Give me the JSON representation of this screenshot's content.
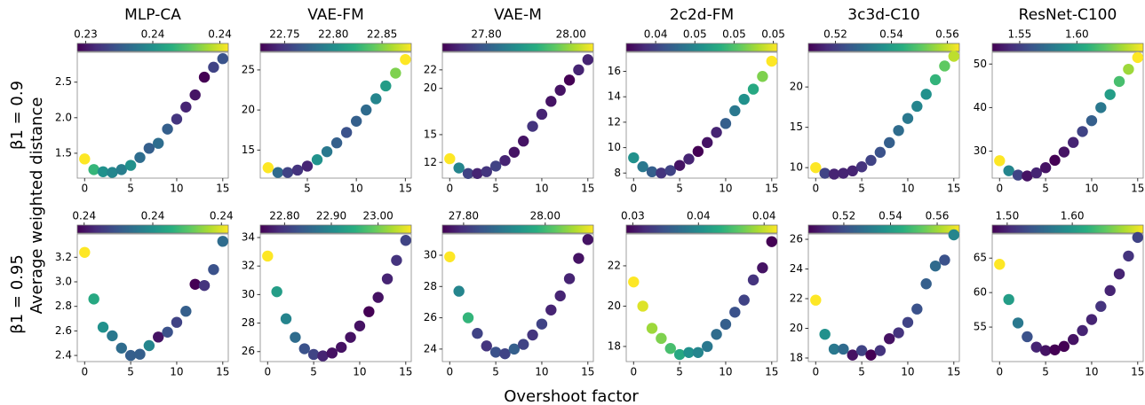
{
  "figure": {
    "row_labels": [
      "β1 = 0.9",
      "β1 = 0.95"
    ],
    "ylabel": "Average weighted distance",
    "xlabel": "Overshoot factor"
  },
  "chart_data": [
    {
      "type": "scatter",
      "title": "MLP-CA",
      "colormap": "viridis",
      "x": [
        0,
        1,
        2,
        3,
        4,
        5,
        6,
        7,
        8,
        9,
        10,
        11,
        12,
        13,
        14,
        15
      ],
      "values": [
        1.42,
        1.27,
        1.24,
        1.23,
        1.27,
        1.33,
        1.44,
        1.57,
        1.64,
        1.84,
        1.98,
        2.15,
        2.32,
        2.57,
        2.71,
        2.83
      ],
      "color_values": [
        0.2425,
        0.2394,
        0.238,
        0.2376,
        0.2373,
        0.238,
        0.2367,
        0.2362,
        0.2367,
        0.2362,
        0.2349,
        0.2344,
        0.234,
        0.2335,
        0.2353,
        0.2358
      ],
      "xlim": [
        -0.8,
        15.6
      ],
      "xticks": [
        0,
        5,
        10,
        15
      ],
      "ylim": [
        1.15,
        2.92
      ],
      "yticks": [
        1.5,
        {
          "value": 2,
          "label": "2.0"
        },
        2.5
      ],
      "clim": [
        0.2335,
        0.2425
      ],
      "cticks": [
        {
          "value": 0.234,
          "label": "0.23"
        },
        {
          "value": 0.238,
          "label": "0.24"
        },
        {
          "value": 0.242,
          "label": "0.24"
        }
      ]
    },
    {
      "type": "scatter",
      "title": "VAE-FM",
      "colormap": "viridis",
      "x": [
        1,
        2,
        3,
        4,
        5,
        6,
        7,
        8,
        9,
        10,
        11,
        12,
        13,
        14,
        15
      ],
      "values": [
        12.8,
        12.2,
        12.2,
        12.5,
        13.0,
        13.8,
        14.8,
        15.9,
        17.2,
        18.6,
        20.0,
        21.4,
        23.0,
        24.6,
        26.3
      ],
      "color_values": [
        22.88,
        22.779,
        22.756,
        22.748,
        22.741,
        22.803,
        22.787,
        22.772,
        22.764,
        22.772,
        22.779,
        22.795,
        22.81,
        22.849,
        22.88
      ],
      "xlim": [
        0.2,
        15.6
      ],
      "xticks": [
        5,
        10,
        15
      ],
      "ylim": [
        11.5,
        27.2
      ],
      "yticks": [
        15,
        20,
        25
      ],
      "clim": [
        22.725,
        22.88
      ],
      "cticks": [
        22.75,
        {
          "value": 22.8,
          "label": "22.80"
        },
        22.85
      ]
    },
    {
      "type": "scatter",
      "title": "VAE-M",
      "colormap": "viridis",
      "x": [
        0,
        1,
        2,
        3,
        4,
        5,
        6,
        7,
        8,
        9,
        10,
        11,
        12,
        13,
        14,
        15
      ],
      "values": [
        12.4,
        11.4,
        10.8,
        10.8,
        11.0,
        11.6,
        12.2,
        13.1,
        14.3,
        15.9,
        17.2,
        18.6,
        19.8,
        20.9,
        22.0,
        23.1
      ],
      "color_values": [
        28.053,
        27.857,
        27.767,
        27.732,
        27.75,
        27.767,
        27.732,
        27.714,
        27.714,
        27.75,
        27.732,
        27.714,
        27.714,
        27.696,
        27.732,
        27.732
      ],
      "xlim": [
        -0.8,
        15.6
      ],
      "xticks": [
        0,
        5,
        10,
        15
      ],
      "ylim": [
        10.3,
        23.9
      ],
      "yticks": [
        12,
        15,
        20,
        22
      ],
      "clim": [
        27.696,
        28.053
      ],
      "cticks": [
        {
          "value": 27.8,
          "label": "27.80"
        },
        {
          "value": 28,
          "label": "28.00"
        }
      ]
    },
    {
      "type": "scatter",
      "title": "2c2d-FM",
      "colormap": "viridis",
      "x": [
        0,
        1,
        2,
        3,
        4,
        5,
        6,
        7,
        8,
        9,
        10,
        11,
        12,
        13,
        14,
        15
      ],
      "values": [
        9.2,
        8.5,
        8.1,
        8.0,
        8.2,
        8.6,
        9.1,
        9.7,
        10.4,
        11.2,
        11.9,
        12.9,
        13.8,
        14.6,
        15.6,
        16.8
      ],
      "color_values": [
        0.04635,
        0.04558,
        0.04481,
        0.04366,
        0.04404,
        0.04289,
        0.04327,
        0.0425,
        0.04289,
        0.04327,
        0.04481,
        0.04558,
        0.04635,
        0.04712,
        0.04866,
        0.0502
      ],
      "xlim": [
        -0.8,
        15.6
      ],
      "xticks": [
        0,
        5,
        10,
        15
      ],
      "ylim": [
        7.6,
        17.5
      ],
      "yticks": [
        8,
        10,
        12,
        14,
        16
      ],
      "clim": [
        0.0425,
        0.0502
      ],
      "cticks": [
        {
          "value": 0.044,
          "label": "0.04"
        },
        {
          "value": 0.046,
          "label": "0.05"
        },
        {
          "value": 0.048,
          "label": "0.05"
        },
        {
          "value": 0.05,
          "label": "0.05"
        }
      ]
    },
    {
      "type": "scatter",
      "title": "3c3d-C10",
      "colormap": "viridis",
      "x": [
        0,
        1,
        2,
        3,
        4,
        5,
        6,
        7,
        8,
        9,
        10,
        11,
        12,
        13,
        14,
        15
      ],
      "values": [
        10.0,
        9.3,
        9.2,
        9.3,
        9.6,
        10.1,
        10.9,
        11.9,
        13.1,
        14.6,
        16.1,
        17.6,
        19.1,
        20.9,
        22.6,
        23.8
      ],
      "color_values": [
        0.5643,
        0.5211,
        0.5157,
        0.5157,
        0.5157,
        0.5184,
        0.5211,
        0.5238,
        0.5265,
        0.5292,
        0.5319,
        0.5346,
        0.5373,
        0.5454,
        0.5508,
        0.5589
      ],
      "xlim": [
        -0.8,
        15.6
      ],
      "xticks": [
        0,
        5,
        10,
        15
      ],
      "ylim": [
        8.7,
        24.3
      ],
      "yticks": [
        10,
        15,
        20
      ],
      "clim": [
        0.5103,
        0.5643
      ],
      "cticks": [
        0.52,
        0.54,
        0.56
      ]
    },
    {
      "type": "scatter",
      "title": "ResNet-C100",
      "colormap": "viridis",
      "x": [
        0,
        1,
        2,
        3,
        4,
        5,
        6,
        7,
        8,
        9,
        10,
        11,
        12,
        13,
        14,
        15
      ],
      "values": [
        27.8,
        25.5,
        24.5,
        24.3,
        25.0,
        26.2,
        27.9,
        29.8,
        32.0,
        34.5,
        37.0,
        40.0,
        43.0,
        46.0,
        48.8,
        51.5
      ],
      "color_values": [
        1.658,
        1.5854,
        1.5524,
        1.5326,
        1.5392,
        1.5326,
        1.526,
        1.5326,
        1.5392,
        1.5524,
        1.5656,
        1.5788,
        1.5986,
        1.6184,
        1.6382,
        1.658
      ],
      "xlim": [
        -0.8,
        15.6
      ],
      "xticks": [
        0,
        5,
        10,
        15
      ],
      "ylim": [
        23.8,
        52.7
      ],
      "yticks": [
        30,
        40,
        50
      ],
      "clim": [
        1.526,
        1.658
      ],
      "cticks": [
        1.55,
        {
          "value": 1.6,
          "label": "1.60"
        }
      ]
    },
    {
      "type": "scatter",
      "colormap": "viridis",
      "x": [
        0,
        1,
        2,
        3,
        4,
        5,
        6,
        7,
        8,
        9,
        10,
        11,
        12,
        13,
        14,
        15
      ],
      "values": [
        3.24,
        2.86,
        2.63,
        2.56,
        2.46,
        2.4,
        2.41,
        2.48,
        2.55,
        2.59,
        2.67,
        2.76,
        2.98,
        2.97,
        3.1,
        3.33
      ],
      "color_values": [
        0.2397,
        0.23794,
        0.2375,
        0.23706,
        0.23684,
        0.23662,
        0.23662,
        0.23728,
        0.23552,
        0.2364,
        0.23618,
        0.23662,
        0.2353,
        0.23596,
        0.2364,
        0.23684
      ],
      "xlim": [
        -0.8,
        15.6
      ],
      "xticks": [
        0,
        5,
        10,
        15
      ],
      "ylim": [
        2.35,
        3.39
      ],
      "yticks": [
        2.4,
        2.6,
        2.8,
        {
          "value": 3,
          "label": "3.0"
        },
        3.2
      ],
      "clim": [
        0.2353,
        0.2397
      ],
      "cticks": [
        {
          "value": 0.2355,
          "label": "0.24"
        },
        {
          "value": 0.2375,
          "label": "0.24"
        },
        {
          "value": 0.2395,
          "label": "0.24"
        }
      ]
    },
    {
      "type": "scatter",
      "colormap": "viridis",
      "x": [
        0,
        1,
        2,
        3,
        4,
        5,
        6,
        7,
        8,
        9,
        10,
        11,
        12,
        13,
        14,
        15
      ],
      "values": [
        32.7,
        30.2,
        28.3,
        27.0,
        26.2,
        25.8,
        25.7,
        25.9,
        26.3,
        27.0,
        27.8,
        28.8,
        29.8,
        31.1,
        32.4,
        33.8
      ],
      "color_values": [
        23.071,
        22.926,
        22.893,
        22.861,
        22.829,
        22.813,
        22.78,
        22.764,
        22.764,
        22.764,
        22.764,
        22.748,
        22.764,
        22.78,
        22.796,
        22.813
      ],
      "xlim": [
        -0.8,
        15.6
      ],
      "xticks": [
        0,
        5,
        10,
        15
      ],
      "ylim": [
        25.3,
        34.25
      ],
      "yticks": [
        26,
        28,
        30,
        32,
        34
      ],
      "clim": [
        22.748,
        23.071
      ],
      "cticks": [
        {
          "value": 22.8,
          "label": "22.80"
        },
        {
          "value": 22.9,
          "label": "22.90"
        },
        {
          "value": 23,
          "label": "23.00"
        }
      ]
    },
    {
      "type": "scatter",
      "colormap": "viridis",
      "x": [
        0,
        1,
        2,
        3,
        4,
        5,
        6,
        7,
        8,
        9,
        10,
        11,
        12,
        13,
        14,
        15
      ],
      "values": [
        29.9,
        27.7,
        26.0,
        25.0,
        24.2,
        23.8,
        23.7,
        24.0,
        24.3,
        24.9,
        25.6,
        26.5,
        27.4,
        28.5,
        29.8,
        31.0
      ],
      "color_values": [
        28.118,
        27.915,
        27.989,
        27.822,
        27.804,
        27.841,
        27.822,
        27.859,
        27.822,
        27.804,
        27.822,
        27.785,
        27.785,
        27.785,
        27.767,
        27.767
      ],
      "xlim": [
        -0.8,
        15.6
      ],
      "xticks": [
        0,
        5,
        10,
        15
      ],
      "ylim": [
        23.2,
        31.36
      ],
      "yticks": [
        24,
        26,
        28,
        30
      ],
      "clim": [
        27.748,
        28.118
      ],
      "cticks": [
        {
          "value": 27.8,
          "label": "27.80"
        },
        {
          "value": 28,
          "label": "28.00"
        }
      ]
    },
    {
      "type": "scatter",
      "colormap": "viridis",
      "x": [
        0,
        1,
        2,
        3,
        4,
        5,
        6,
        7,
        8,
        9,
        10,
        11,
        12,
        13,
        14,
        15
      ],
      "values": [
        21.2,
        20.0,
        18.9,
        18.4,
        17.9,
        17.6,
        17.7,
        17.7,
        18.0,
        18.6,
        19.1,
        19.7,
        20.3,
        21.3,
        21.9,
        23.2
      ],
      "color_values": [
        0.0384,
        0.03817,
        0.03771,
        0.03748,
        0.03702,
        0.03656,
        0.0361,
        0.03587,
        0.03564,
        0.03541,
        0.03518,
        0.03495,
        0.03472,
        0.03449,
        0.03403,
        0.0338
      ],
      "xlim": [
        -0.8,
        15.6
      ],
      "xticks": [
        0,
        5,
        10,
        15
      ],
      "ylim": [
        17.25,
        23.58
      ],
      "yticks": [
        18,
        20,
        22
      ],
      "clim": [
        0.0338,
        0.0384
      ],
      "cticks": [
        {
          "value": 0.034,
          "label": "0.03"
        },
        {
          "value": 0.036,
          "label": "0.04"
        },
        {
          "value": 0.038,
          "label": "0.04"
        }
      ]
    },
    {
      "type": "scatter",
      "colormap": "viridis",
      "x": [
        0,
        1,
        2,
        3,
        4,
        5,
        6,
        7,
        8,
        9,
        10,
        11,
        12,
        13,
        14,
        15
      ],
      "values": [
        21.9,
        19.6,
        18.6,
        18.6,
        18.2,
        18.5,
        18.2,
        18.5,
        19.3,
        19.7,
        20.4,
        21.3,
        23.0,
        24.2,
        24.6,
        26.3
      ],
      "color_values": [
        0.5695,
        0.5372,
        0.5307,
        0.5274,
        0.508,
        0.5177,
        0.5048,
        0.5145,
        0.508,
        0.5145,
        0.5177,
        0.521,
        0.5242,
        0.5274,
        0.521,
        0.5339
      ],
      "xlim": [
        -0.8,
        15.6
      ],
      "xticks": [
        0,
        5,
        10,
        15
      ],
      "ylim": [
        17.76,
        26.36
      ],
      "yticks": [
        18,
        20,
        22,
        24,
        26
      ],
      "clim": [
        0.5048,
        0.5695
      ],
      "cticks": [
        0.52,
        0.54,
        0.56
      ]
    },
    {
      "type": "scatter",
      "colormap": "viridis",
      "x": [
        0,
        1,
        2,
        3,
        4,
        5,
        6,
        7,
        8,
        9,
        10,
        11,
        12,
        13,
        14,
        15
      ],
      "values": [
        64.1,
        59.0,
        55.6,
        53.6,
        52.1,
        51.6,
        51.7,
        52.2,
        53.2,
        54.5,
        56.1,
        58.0,
        60.3,
        62.7,
        65.3,
        68.0
      ],
      "color_values": [
        1.709,
        1.6046,
        1.5698,
        1.535,
        1.5002,
        1.4886,
        1.477,
        1.477,
        1.4886,
        1.5002,
        1.5002,
        1.5118,
        1.5002,
        1.5002,
        1.5118,
        1.5234
      ],
      "xlim": [
        -0.8,
        15.6
      ],
      "xticks": [
        0,
        5,
        10,
        15
      ],
      "ylim": [
        50.0,
        68.5
      ],
      "yticks": [
        55,
        60,
        65
      ],
      "clim": [
        1.477,
        1.709
      ],
      "cticks": [
        {
          "value": 1.5,
          "label": "1.50"
        },
        {
          "value": 1.6,
          "label": "1.60"
        }
      ]
    }
  ]
}
